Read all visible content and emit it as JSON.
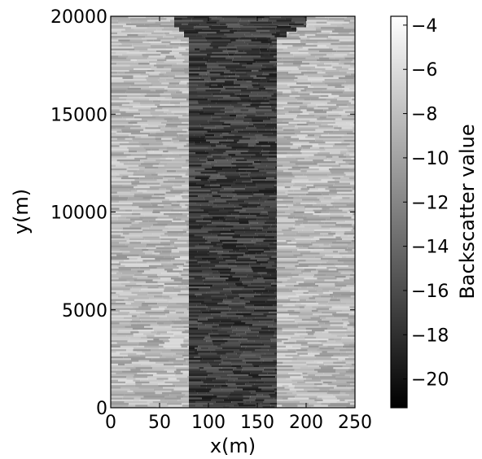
{
  "chart_data": {
    "type": "heatmap",
    "xlabel": "x(m)",
    "ylabel": "y(m)",
    "xlim": [
      0,
      250
    ],
    "ylim": [
      0,
      20000
    ],
    "xticks": [
      0,
      50,
      100,
      150,
      200,
      250
    ],
    "yticks": [
      0,
      5000,
      10000,
      15000,
      20000
    ],
    "colormap": "gray",
    "colorbar": {
      "label": "Backscatter value",
      "range": [
        -21.3,
        -3.6
      ],
      "ticks": [
        -20,
        -18,
        -16,
        -14,
        -12,
        -10,
        -8,
        -6,
        -4
      ]
    },
    "regions": [
      {
        "name": "left background",
        "x": [
          0,
          80
        ],
        "y": [
          0,
          20000
        ],
        "mean": -8.5
      },
      {
        "name": "right background",
        "x": [
          170,
          250
        ],
        "y": [
          0,
          20000
        ],
        "mean": -8.5
      },
      {
        "name": "central channel",
        "x": [
          80,
          170
        ],
        "y": [
          0,
          19000
        ],
        "mean": -17.0
      },
      {
        "name": "flared top",
        "x": [
          65,
          200
        ],
        "y": [
          19500,
          20000
        ],
        "mean": -17.0
      },
      {
        "name": "flared top",
        "x": [
          70,
          190
        ],
        "y": [
          19300,
          19500
        ],
        "mean": -17.0
      },
      {
        "name": "flared top",
        "x": [
          75,
          180
        ],
        "y": [
          19000,
          19300
        ],
        "mean": -17.0
      }
    ]
  }
}
